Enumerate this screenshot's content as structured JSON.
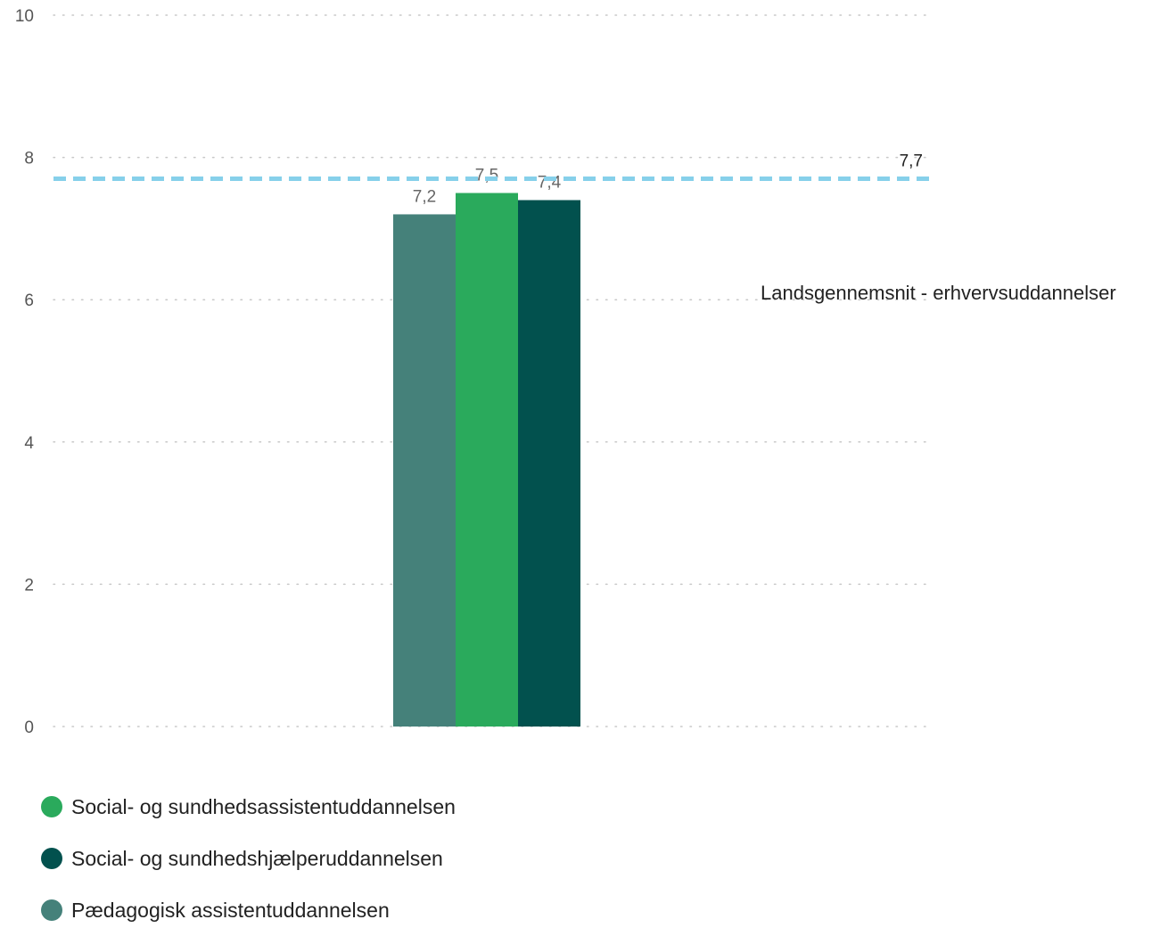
{
  "chart_data": {
    "type": "bar",
    "title": "",
    "xlabel": "",
    "ylabel": "",
    "ylim": [
      0,
      10
    ],
    "yticks": [
      "0",
      "2",
      "4",
      "6",
      "8",
      "10"
    ],
    "grid": true,
    "legend_position": "bottom-left",
    "series": [
      {
        "name": "Pædagogisk assistentuddannelsen",
        "value": 7.2,
        "label": "7,2",
        "color": "#45817a"
      },
      {
        "name": "Social- og sundhedsassistentuddannelsen",
        "value": 7.5,
        "label": "7,5",
        "color": "#2aaa5c"
      },
      {
        "name": "Social- og sundhedshjælperuddannelsen",
        "value": 7.4,
        "label": "7,4",
        "color": "#02514e"
      }
    ],
    "reference_line": {
      "name": "Landsgennemsnit - erhvervsuddannelser",
      "value": 7.7,
      "label": "7,7",
      "color": "#86d0ea",
      "style": "dashed"
    }
  },
  "legend": {
    "items": [
      {
        "label": "Social- og sundhedsassistentuddannelsen",
        "color": "#2aaa5c"
      },
      {
        "label": "Social- og sundhedshjælperuddannelsen",
        "color": "#02514e"
      },
      {
        "label": "Pædagogisk assistentuddannelsen",
        "color": "#45817a"
      }
    ]
  }
}
